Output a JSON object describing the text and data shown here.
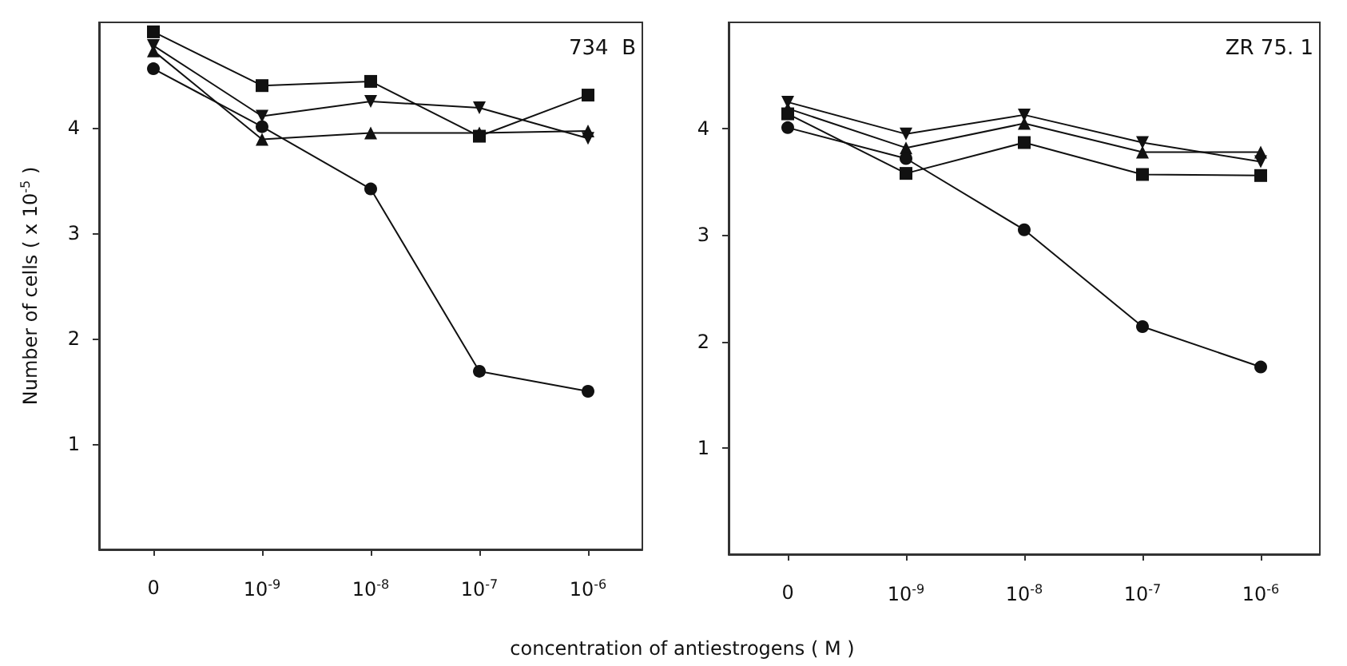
{
  "chart_data": [
    {
      "type": "line",
      "ylabel": "Number of cells ( x 10$^{-5}$ )",
      "xlabel": "concentration of antiestrogens ( M )",
      "annotations": [
        "734  B"
      ],
      "categories": [
        "0",
        "10$^{-9}$",
        "10$^{-8}$",
        "10$^{-7}$",
        "10$^{-6}$"
      ],
      "ylim": [
        0,
        5
      ],
      "yticks": [
        1,
        2,
        3,
        4
      ],
      "grid": false,
      "series": [
        {
          "color": "#111111",
          "marker": "square",
          "values": [
            4.91,
            4.4,
            4.44,
            3.92,
            4.31
          ]
        },
        {
          "color": "#111111",
          "marker": "triangle-down",
          "values": [
            4.78,
            4.11,
            4.25,
            4.19,
            3.9
          ]
        },
        {
          "color": "#111111",
          "marker": "triangle",
          "values": [
            4.73,
            3.89,
            3.95,
            3.95,
            3.97
          ]
        },
        {
          "color": "#111111",
          "marker": "circle",
          "values": [
            4.56,
            4.01,
            3.42,
            1.69,
            1.5
          ]
        }
      ]
    },
    {
      "type": "line",
      "annotations": [
        "ZR 75. 1"
      ],
      "categories": [
        "0",
        "10$^{-9}$",
        "10$^{-8}$",
        "10$^{-7}$",
        "10$^{-6}$"
      ],
      "ylim": [
        0,
        5
      ],
      "yticks": [
        1,
        2,
        3,
        4
      ],
      "grid": false,
      "series": [
        {
          "color": "#111111",
          "marker": "triangle-down",
          "values": [
            4.25,
            3.95,
            4.13,
            3.87,
            3.69
          ]
        },
        {
          "color": "#111111",
          "marker": "triangle",
          "values": [
            4.19,
            3.82,
            4.05,
            3.78,
            3.78
          ]
        },
        {
          "color": "#111111",
          "marker": "square",
          "values": [
            4.14,
            3.58,
            3.87,
            3.57,
            3.56
          ]
        },
        {
          "color": "#111111",
          "marker": "circle",
          "values": [
            4.01,
            3.72,
            3.05,
            2.14,
            1.76
          ]
        }
      ]
    }
  ]
}
